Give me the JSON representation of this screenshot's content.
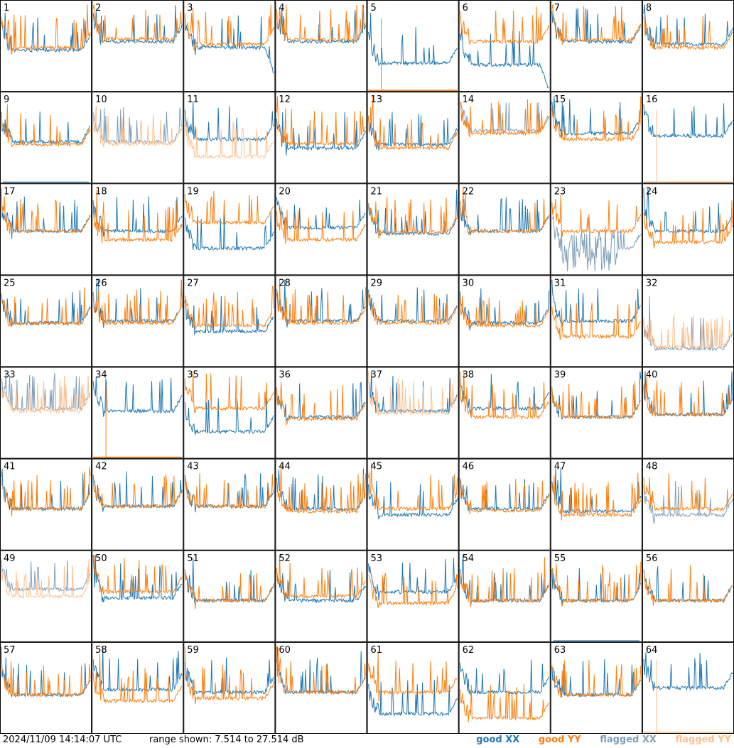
{
  "chart_data": {
    "type": "line",
    "layout": "small-multiples 8x8",
    "panels": [
      {
        "id": "1",
        "xx": "good",
        "yy": "good",
        "xx_level": 0.55,
        "yy_level": 0.52,
        "spikes": "dense-left"
      },
      {
        "id": "2",
        "xx": "good",
        "yy": "good",
        "xx_level": 0.45,
        "yy_level": 0.42
      },
      {
        "id": "3",
        "xx": "good",
        "yy": "good",
        "xx_level": 0.52,
        "yy_level": 0.48,
        "xx_drop_right": true
      },
      {
        "id": "4",
        "xx": "good",
        "yy": "good",
        "xx_level": 0.45,
        "yy_level": 0.43
      },
      {
        "id": "5",
        "xx": "good",
        "yy": "good",
        "xx_level": 0.7,
        "yy_level": 0.75,
        "yy_dead": true
      },
      {
        "id": "6",
        "xx": "good",
        "yy": "good",
        "xx_level": 0.72,
        "yy_level": 0.45,
        "xx_drop_right": true
      },
      {
        "id": "7",
        "xx": "good",
        "yy": "good",
        "xx_level": 0.45,
        "yy_level": 0.43
      },
      {
        "id": "8",
        "xx": "good",
        "yy": "good",
        "xx_level": 0.48,
        "yy_level": 0.52
      },
      {
        "id": "9",
        "xx": "good",
        "yy": "good",
        "xx_level": 0.55,
        "yy_level": 0.58,
        "xx_dead": true
      },
      {
        "id": "10",
        "xx": "flagged",
        "yy": "flagged",
        "xx_level": 0.55,
        "yy_level": 0.57
      },
      {
        "id": "11",
        "xx": "good",
        "yy": "flagged",
        "xx_level": 0.52,
        "yy_level": 0.72
      },
      {
        "id": "12",
        "xx": "good",
        "yy": "good",
        "xx_level": 0.62,
        "yy_level": 0.57
      },
      {
        "id": "13",
        "xx": "good",
        "yy": "good",
        "xx_level": 0.58,
        "yy_level": 0.62
      },
      {
        "id": "14",
        "xx": "flagged",
        "yy": "good",
        "xx_level": 0.42,
        "yy_level": 0.45
      },
      {
        "id": "15",
        "xx": "good",
        "yy": "good",
        "xx_level": 0.45,
        "yy_level": 0.52
      },
      {
        "id": "16",
        "xx": "good",
        "yy": "flagged",
        "xx_level": 0.48,
        "yy_level": 1.0,
        "yy_dead": true
      },
      {
        "id": "17",
        "xx": "good",
        "yy": "good",
        "xx_level": 0.52,
        "yy_level": 0.52
      },
      {
        "id": "18",
        "xx": "good",
        "yy": "good",
        "xx_level": 0.52,
        "yy_level": 0.62
      },
      {
        "id": "19",
        "xx": "good",
        "yy": "good",
        "xx_level": 0.72,
        "yy_level": 0.42
      },
      {
        "id": "20",
        "xx": "good",
        "yy": "good",
        "xx_level": 0.48,
        "yy_level": 0.62
      },
      {
        "id": "21",
        "xx": "good",
        "yy": "good",
        "xx_level": 0.55,
        "yy_level": 0.53
      },
      {
        "id": "22",
        "xx": "good",
        "yy": "good",
        "xx_level": 0.52,
        "yy_level": 0.52
      },
      {
        "id": "23",
        "xx": "flagged",
        "yy": "good",
        "xx_level": 0.72,
        "yy_level": 0.52,
        "xx_noisy": true
      },
      {
        "id": "24",
        "xx": "good",
        "yy": "good",
        "xx_level": 0.52,
        "yy_level": 0.65
      },
      {
        "id": "25",
        "xx": "good",
        "yy": "good",
        "xx_level": 0.52,
        "yy_level": 0.53
      },
      {
        "id": "26",
        "xx": "good",
        "yy": "good",
        "xx_level": 0.5,
        "yy_level": 0.52
      },
      {
        "id": "27",
        "xx": "good",
        "yy": "good",
        "xx_level": 0.62,
        "yy_level": 0.55
      },
      {
        "id": "28",
        "xx": "good",
        "yy": "good",
        "xx_level": 0.5,
        "yy_level": 0.52
      },
      {
        "id": "29",
        "xx": "good",
        "yy": "good",
        "xx_level": 0.5,
        "yy_level": 0.52
      },
      {
        "id": "30",
        "xx": "good",
        "yy": "good",
        "xx_level": 0.52,
        "yy_level": 0.55
      },
      {
        "id": "31",
        "xx": "good",
        "yy": "good",
        "xx_level": 0.5,
        "yy_level": 0.68
      },
      {
        "id": "32",
        "xx": "flagged",
        "yy": "flagged",
        "xx_level": 0.82,
        "yy_level": 0.8
      },
      {
        "id": "33",
        "xx": "flagged",
        "yy": "flagged",
        "xx_level": 0.45,
        "yy_level": 0.48
      },
      {
        "id": "34",
        "xx": "good",
        "yy": "good",
        "xx_level": 0.48,
        "yy_level": 1.0,
        "yy_dead": true
      },
      {
        "id": "35",
        "xx": "good",
        "yy": "good",
        "xx_level": 0.72,
        "yy_level": 0.45
      },
      {
        "id": "36",
        "xx": "good",
        "yy": "good",
        "xx_level": 0.55,
        "yy_level": 0.57
      },
      {
        "id": "37",
        "xx": "good",
        "yy": "flagged",
        "xx_level": 0.48,
        "yy_level": 0.5
      },
      {
        "id": "38",
        "xx": "good",
        "yy": "good",
        "xx_level": 0.45,
        "yy_level": 0.55
      },
      {
        "id": "39",
        "xx": "good",
        "yy": "good",
        "xx_level": 0.55,
        "yy_level": 0.55
      },
      {
        "id": "40",
        "xx": "good",
        "yy": "good",
        "xx_level": 0.52,
        "yy_level": 0.52
      },
      {
        "id": "41",
        "xx": "good",
        "yy": "good",
        "xx_level": 0.55,
        "yy_level": 0.55
      },
      {
        "id": "42",
        "xx": "good",
        "yy": "good",
        "xx_level": 0.52,
        "yy_level": 0.52
      },
      {
        "id": "43",
        "xx": "good",
        "yy": "good",
        "xx_level": 0.52,
        "yy_level": 0.52
      },
      {
        "id": "44",
        "xx": "good",
        "yy": "good",
        "xx_level": 0.55,
        "yy_level": 0.58
      },
      {
        "id": "45",
        "xx": "good",
        "yy": "good",
        "xx_level": 0.62,
        "yy_level": 0.55
      },
      {
        "id": "46",
        "xx": "good",
        "yy": "good",
        "xx_level": 0.55,
        "yy_level": 0.57
      },
      {
        "id": "47",
        "xx": "good",
        "yy": "good",
        "xx_level": 0.58,
        "yy_level": 0.62
      },
      {
        "id": "48",
        "xx": "flagged",
        "yy": "good",
        "xx_level": 0.62,
        "yy_level": 0.55
      },
      {
        "id": "49",
        "xx": "flagged",
        "yy": "flagged",
        "xx_level": 0.42,
        "yy_level": 0.5
      },
      {
        "id": "50",
        "xx": "good",
        "yy": "good",
        "xx_level": 0.52,
        "yy_level": 0.45
      },
      {
        "id": "51",
        "xx": "good",
        "yy": "good",
        "xx_level": 0.55,
        "yy_level": 0.55
      },
      {
        "id": "52",
        "xx": "good",
        "yy": "good",
        "xx_level": 0.55,
        "yy_level": 0.5
      },
      {
        "id": "53",
        "xx": "good",
        "yy": "good",
        "xx_level": 0.45,
        "yy_level": 0.58
      },
      {
        "id": "54",
        "xx": "good",
        "yy": "good",
        "xx_level": 0.55,
        "yy_level": 0.55
      },
      {
        "id": "55",
        "xx": "good",
        "yy": "good",
        "xx_level": 0.55,
        "yy_level": 0.55,
        "xx_dead": true
      },
      {
        "id": "56",
        "xx": "good",
        "yy": "good",
        "xx_level": 0.55,
        "yy_level": 0.55
      },
      {
        "id": "57",
        "xx": "good",
        "yy": "good",
        "xx_level": 0.58,
        "yy_level": 0.58
      },
      {
        "id": "58",
        "xx": "good",
        "yy": "good",
        "xx_level": 0.52,
        "yy_level": 0.65
      },
      {
        "id": "59",
        "xx": "good",
        "yy": "good",
        "xx_level": 0.55,
        "yy_level": 0.62
      },
      {
        "id": "60",
        "xx": "good",
        "yy": "good",
        "xx_level": 0.55,
        "yy_level": 0.55
      },
      {
        "id": "61",
        "xx": "good",
        "yy": "good",
        "xx_level": 0.8,
        "yy_level": 0.55
      },
      {
        "id": "62",
        "xx": "good",
        "yy": "good",
        "xx_level": 0.55,
        "yy_level": 0.85
      },
      {
        "id": "63",
        "xx": "good",
        "yy": "good",
        "xx_level": 0.58,
        "yy_level": 0.58
      },
      {
        "id": "64",
        "xx": "good",
        "yy": "flagged",
        "xx_level": 0.5,
        "yy_level": 1.0,
        "yy_dead": true
      }
    ],
    "series_styles": {
      "good XX": "#1f77b4",
      "good YY": "#ff7f0e",
      "flagged XX": "#7f9fb9",
      "flagged YY": "#ffbf8c"
    }
  },
  "footer": {
    "timestamp": "2024/11/09 14:14:07 UTC",
    "range": "range shown: 7.514 to 27.514 dB"
  },
  "legend": {
    "good_word": "good",
    "flagged_word": "flagged",
    "xx": "XX",
    "yy": "YY",
    "colors": {
      "good_xx": "#1f77b4",
      "good_yy": "#ff7f0e",
      "flagged_xx": "#7f9fb9",
      "flagged_yy": "#ffbf8c"
    }
  }
}
